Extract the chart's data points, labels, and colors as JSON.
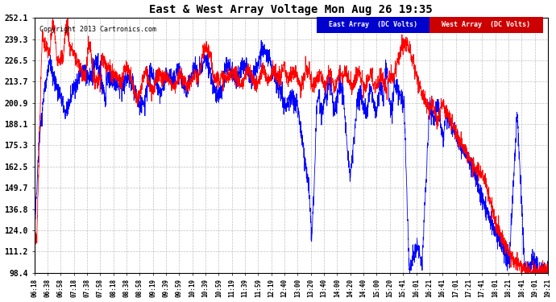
{
  "title": "East & West Array Voltage Mon Aug 26 19:35",
  "copyright": "Copyright 2013 Cartronics.com",
  "legend_east": "East Array  (DC Volts)",
  "legend_west": "West Array  (DC Volts)",
  "east_color": "#0000ff",
  "west_color": "#ff0000",
  "background_color": "#ffffff",
  "plot_bg_color": "#ffffff",
  "grid_color": "#b0b0b0",
  "ylim_min": 98.4,
  "ylim_max": 252.1,
  "yticks": [
    98.4,
    111.2,
    124.0,
    136.8,
    149.7,
    162.5,
    175.3,
    188.1,
    200.9,
    213.7,
    226.5,
    239.3,
    252.1
  ],
  "x_labels": [
    "06:18",
    "06:38",
    "06:58",
    "07:18",
    "07:38",
    "07:58",
    "08:18",
    "08:38",
    "08:58",
    "09:19",
    "09:39",
    "09:59",
    "10:19",
    "10:39",
    "10:59",
    "11:19",
    "11:39",
    "11:59",
    "12:19",
    "12:40",
    "13:00",
    "13:20",
    "13:40",
    "14:00",
    "14:20",
    "14:40",
    "15:00",
    "15:20",
    "15:41",
    "16:01",
    "16:21",
    "16:41",
    "17:01",
    "17:21",
    "17:41",
    "18:01",
    "18:21",
    "18:41",
    "19:01",
    "19:21"
  ]
}
